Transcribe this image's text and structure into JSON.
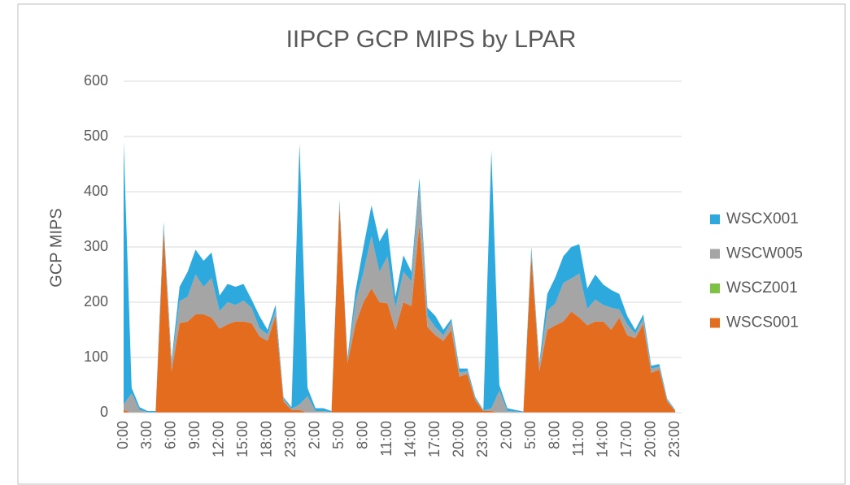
{
  "chart_data": {
    "type": "stacked_area",
    "title": "IIPCP GCP MIPS by LPAR",
    "y_label": "GCP MIPS",
    "categories": [
      "0:00",
      null,
      null,
      "3:00",
      null,
      null,
      "6:00",
      null,
      null,
      "9:00",
      null,
      null,
      "12:00",
      null,
      null,
      "15:00",
      null,
      null,
      "18:00",
      null,
      null,
      "23:00",
      null,
      null,
      "2:00",
      null,
      null,
      "5:00",
      null,
      null,
      "8:00",
      null,
      null,
      "11:00",
      null,
      null,
      "14:00",
      null,
      null,
      "17:00",
      null,
      null,
      "20:00",
      null,
      null,
      "23:00",
      null,
      null,
      "2:00",
      null,
      null,
      "5:00",
      null,
      null,
      "8:00",
      null,
      null,
      "11:00",
      null,
      null,
      "14:00",
      null,
      null,
      "17:00",
      null,
      null,
      "20:00",
      null,
      null,
      "23:00"
    ],
    "series": [
      {
        "name": "WSCS001",
        "color": "#e46c1f",
        "values": [
          5,
          0,
          0,
          0,
          0,
          330,
          75,
          162,
          165,
          178,
          178,
          172,
          152,
          160,
          165,
          165,
          162,
          138,
          130,
          175,
          20,
          5,
          5,
          0,
          0,
          0,
          0,
          375,
          90,
          160,
          200,
          225,
          200,
          198,
          150,
          200,
          193,
          340,
          155,
          140,
          130,
          150,
          65,
          70,
          22,
          3,
          3,
          0,
          0,
          0,
          0,
          285,
          75,
          150,
          158,
          165,
          183,
          172,
          158,
          165,
          165,
          150,
          172,
          140,
          135,
          160,
          72,
          78,
          20,
          3
        ]
      },
      {
        "name": "WSCZ001",
        "color": "#7cc243",
        "values": [
          0,
          0,
          0,
          0,
          0,
          0,
          0,
          0,
          0,
          0,
          0,
          0,
          0,
          0,
          0,
          0,
          0,
          0,
          0,
          0,
          0,
          0,
          0,
          0,
          0,
          0,
          0,
          0,
          0,
          0,
          0,
          0,
          0,
          0,
          0,
          0,
          0,
          0,
          0,
          0,
          0,
          0,
          0,
          0,
          0,
          0,
          0,
          0,
          0,
          0,
          0,
          0,
          0,
          0,
          0,
          0,
          0,
          0,
          0,
          0,
          0,
          0,
          0,
          0,
          0,
          0,
          0,
          0,
          0,
          0
        ]
      },
      {
        "name": "WSCW005",
        "color": "#a5a5a5",
        "values": [
          10,
          35,
          5,
          1,
          1,
          5,
          15,
          40,
          45,
          72,
          50,
          72,
          32,
          40,
          30,
          38,
          28,
          15,
          12,
          10,
          5,
          2,
          10,
          30,
          3,
          3,
          1,
          5,
          5,
          40,
          55,
          95,
          55,
          85,
          40,
          55,
          45,
          70,
          20,
          15,
          10,
          15,
          8,
          5,
          3,
          1,
          5,
          40,
          3,
          2,
          1,
          5,
          10,
          35,
          40,
          70,
          60,
          80,
          30,
          40,
          30,
          40,
          15,
          20,
          8,
          10,
          8,
          5,
          3,
          1
        ]
      },
      {
        "name": "WSCX001",
        "color": "#2ea9de",
        "values": [
          475,
          10,
          5,
          2,
          2,
          10,
          5,
          26,
          45,
          45,
          47,
          46,
          28,
          33,
          33,
          30,
          15,
          22,
          8,
          10,
          3,
          3,
          472,
          15,
          5,
          5,
          2,
          5,
          5,
          20,
          45,
          55,
          55,
          52,
          20,
          30,
          17,
          15,
          15,
          20,
          10,
          5,
          7,
          5,
          3,
          1,
          467,
          10,
          5,
          3,
          1,
          10,
          5,
          30,
          47,
          48,
          57,
          53,
          37,
          45,
          37,
          32,
          28,
          15,
          7,
          8,
          5,
          5,
          2,
          1
        ]
      }
    ],
    "ylim": [
      0,
      600
    ],
    "yticks": [
      0,
      100,
      200,
      300,
      400,
      500,
      600
    ],
    "grid": true,
    "legend": "right"
  }
}
